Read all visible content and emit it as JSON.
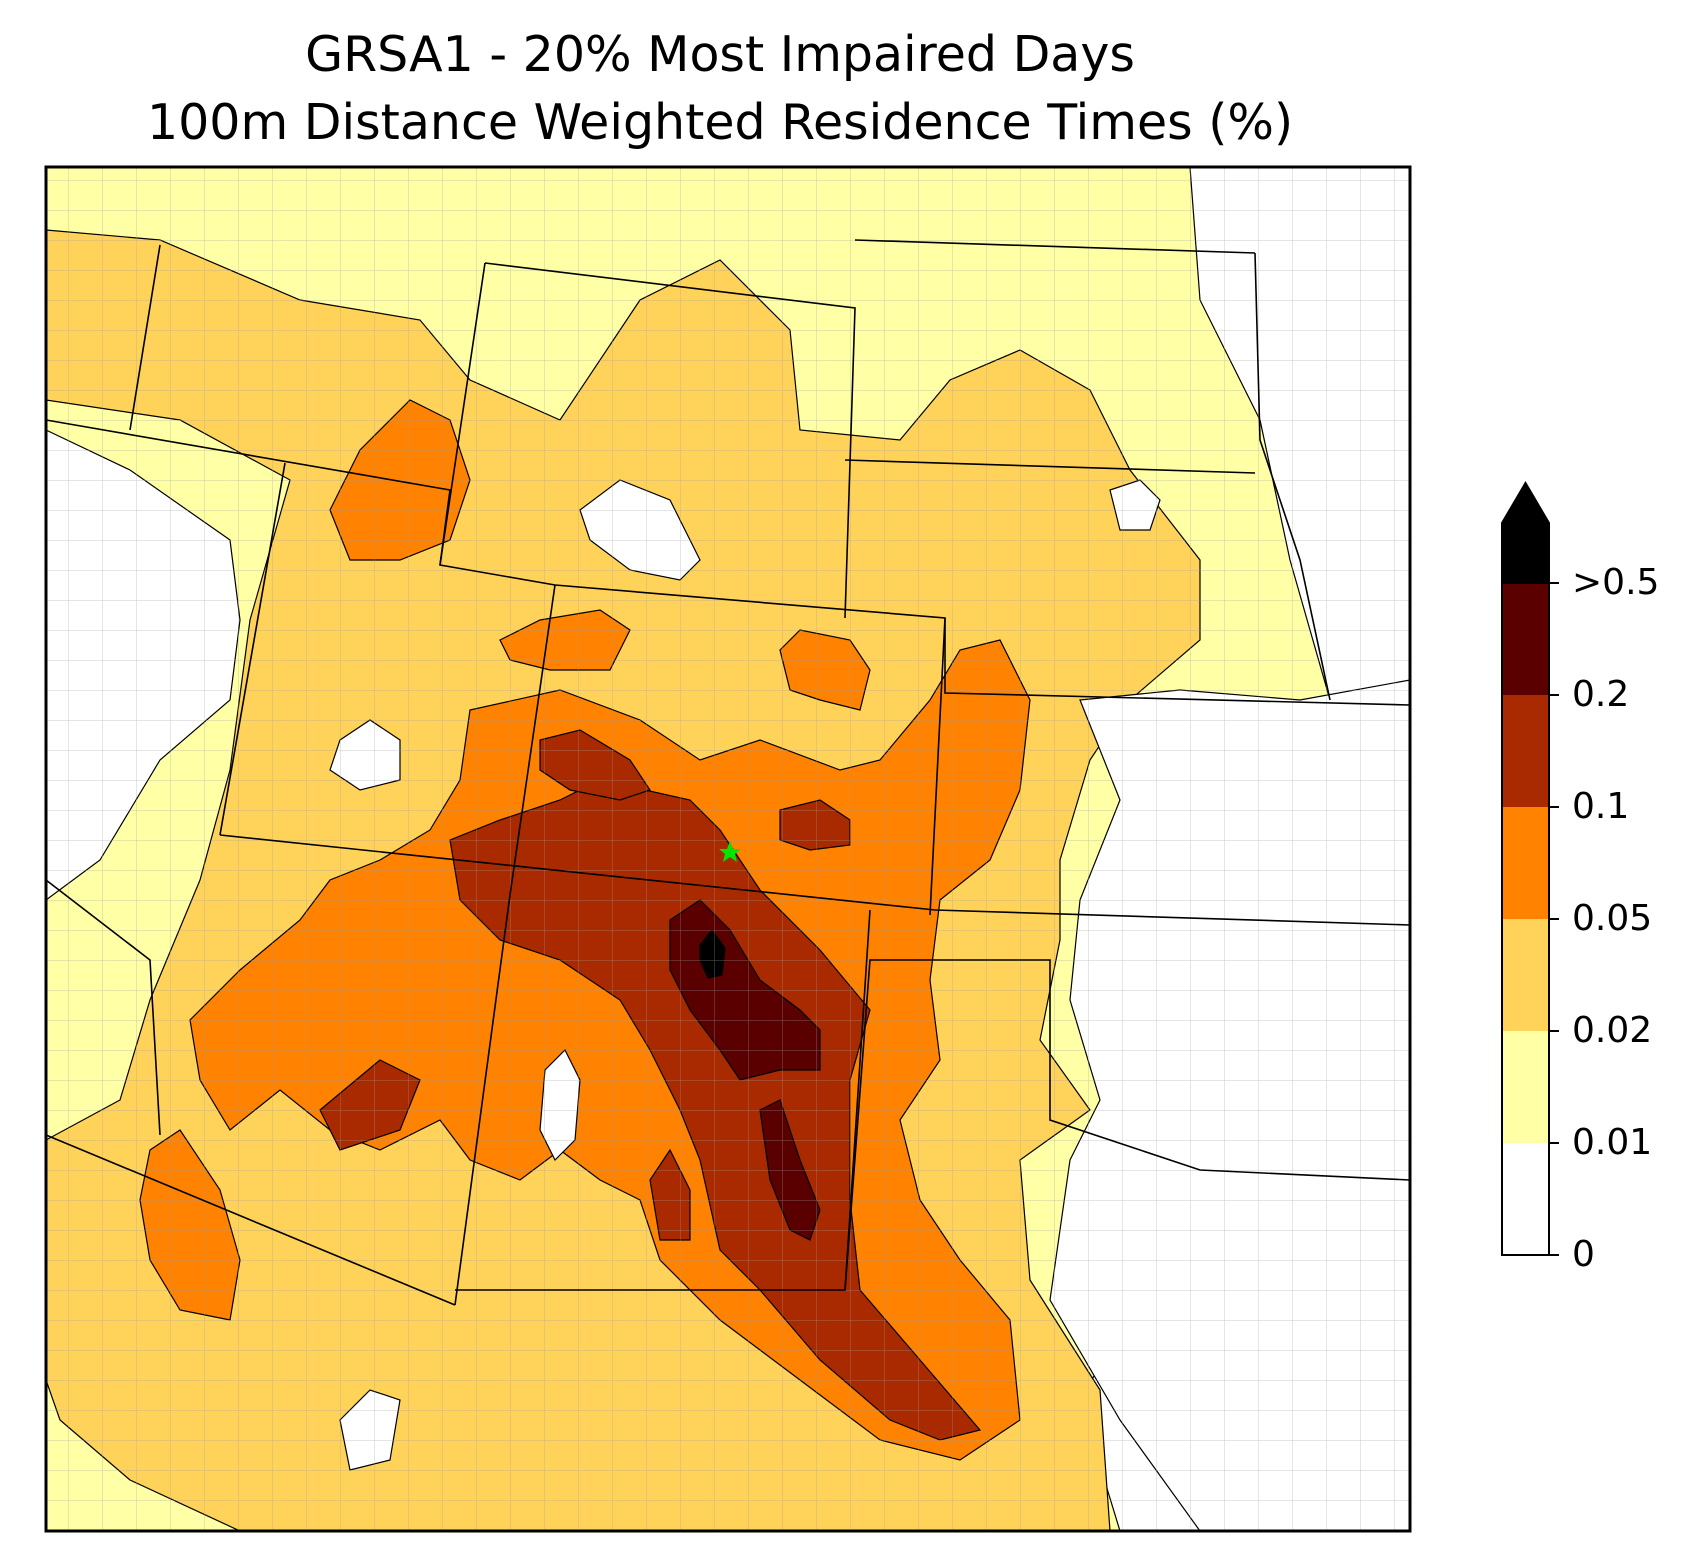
{
  "title": {
    "line1": "GRSA1 - 20% Most Impaired Days",
    "line2": "100m Distance Weighted Residence Times (%)"
  },
  "colorbar": {
    "bins": [
      {
        "from": "0",
        "to": "0.01",
        "color": "#ffffff"
      },
      {
        "from": "0.01",
        "to": "0.02",
        "color": "#ffffa6"
      },
      {
        "from": "0.02",
        "to": "0.05",
        "color": "#ffd25a"
      },
      {
        "from": "0.05",
        "to": "0.1",
        "color": "#ff8200"
      },
      {
        "from": "0.1",
        "to": "0.2",
        "color": "#aa2a00"
      },
      {
        "from": "0.2",
        "to": "0.5",
        "color": "#5a0000"
      },
      {
        "from": ">0.5",
        "to": "",
        "color": "#000000"
      }
    ],
    "labels": [
      "0",
      "0.01",
      "0.02",
      "0.05",
      "0.1",
      "0.2",
      ">0.5"
    ],
    "extend": "max"
  },
  "map": {
    "receptor_marker_color": "#00e600",
    "state_boundary_color": "#000000",
    "county_boundary_color": "#a0a0a0"
  }
}
